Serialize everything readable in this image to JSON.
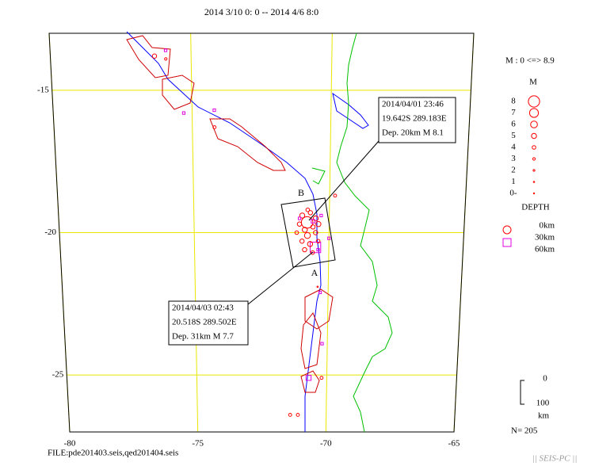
{
  "title": "2014 3/10 0: 0 -- 2014 4/6 8:0",
  "map": {
    "lat_range": [
      -13,
      -27
    ],
    "lon_range": [
      -80,
      -65
    ],
    "lat_ticks": [
      -15,
      -20,
      -25
    ],
    "lon_ticks": [
      -80,
      -75,
      -70,
      -65
    ]
  },
  "callouts": [
    {
      "lines": [
        "2014/04/01 23:46",
        "19.642S   289.183E",
        "Dep. 20km     M 8.1"
      ]
    },
    {
      "lines": [
        "2014/04/03 02:43",
        "20.518S   289.502E",
        "Dep. 31km     M 7.7"
      ]
    }
  ],
  "section_labels": [
    "B",
    "A"
  ],
  "legend": {
    "magnitude_range": "M : 0 <=> 8.9",
    "magnitude_title": "M",
    "magnitudes": [
      8,
      7,
      6,
      5,
      4,
      3,
      2,
      1,
      {
        "value": 0,
        "label": "0-"
      }
    ],
    "depth_title": "DEPTH",
    "depths": [
      {
        "value": 0,
        "label": "0km"
      },
      {
        "value": 30,
        "label": "30km"
      },
      {
        "value": 60,
        "label": "60km"
      }
    ]
  },
  "scale": {
    "top": 0,
    "bottom": 100,
    "unit": "km"
  },
  "count": "N= 205",
  "file": "FILE:pde201403.seis,qed201404.seis",
  "footer": "|| SEIS-PC ||",
  "events": [
    {
      "lon": -75.9,
      "lat": -13.6,
      "depth": 50,
      "mag": 3
    },
    {
      "lon": -76.3,
      "lat": -13.8,
      "depth": 10,
      "mag": 4.5
    },
    {
      "lon": -75.9,
      "lat": -13.9,
      "depth": 10,
      "mag": 3
    },
    {
      "lon": -75.3,
      "lat": -15.8,
      "depth": 50,
      "mag": 3
    },
    {
      "lon": -74.2,
      "lat": -15.7,
      "depth": 50,
      "mag": 3
    },
    {
      "lon": -74.2,
      "lat": -16.3,
      "depth": 10,
      "mag": 3.5
    },
    {
      "lon": -69.8,
      "lat": -18.7,
      "depth": 10,
      "mag": 3.5
    },
    {
      "lon": -70.0,
      "lat": -20.2,
      "depth": 50,
      "mag": 3
    },
    {
      "lon": -70.4,
      "lat": -21.9,
      "depth": 10,
      "mag": 1
    },
    {
      "lon": -70.3,
      "lat": -22.1,
      "depth": 50,
      "mag": 3
    },
    {
      "lon": -70.2,
      "lat": -23.9,
      "depth": 50,
      "mag": 3
    },
    {
      "lon": -70.7,
      "lat": -25.1,
      "depth": 50,
      "mag": 5
    },
    {
      "lon": -70.2,
      "lat": -25.1,
      "depth": 10,
      "mag": 3.5
    },
    {
      "lon": -71.4,
      "lat": -26.4,
      "depth": 10,
      "mag": 3.5
    },
    {
      "lon": -71.1,
      "lat": -26.4,
      "depth": 10,
      "mag": 3.5
    },
    {
      "lon": -70.817,
      "lat": -19.642,
      "depth": 20,
      "mag": 8.1
    },
    {
      "lon": -70.498,
      "lat": -20.518,
      "depth": 31,
      "mag": 7.7
    },
    {
      "lon": -71.0,
      "lat": -19.4,
      "depth": 10,
      "mag": 5
    },
    {
      "lon": -70.7,
      "lat": -19.3,
      "depth": 10,
      "mag": 4.5
    },
    {
      "lon": -70.5,
      "lat": -19.5,
      "depth": 10,
      "mag": 5
    },
    {
      "lon": -71.1,
      "lat": -19.7,
      "depth": 10,
      "mag": 4.5
    },
    {
      "lon": -70.9,
      "lat": -19.9,
      "depth": 10,
      "mag": 5
    },
    {
      "lon": -70.6,
      "lat": -19.8,
      "depth": 10,
      "mag": 4.5
    },
    {
      "lon": -70.4,
      "lat": -19.7,
      "depth": 10,
      "mag": 5
    },
    {
      "lon": -71.2,
      "lat": -20.0,
      "depth": 10,
      "mag": 4
    },
    {
      "lon": -70.8,
      "lat": -20.1,
      "depth": 10,
      "mag": 5.5
    },
    {
      "lon": -70.5,
      "lat": -20.0,
      "depth": 10,
      "mag": 4.5
    },
    {
      "lon": -71.0,
      "lat": -20.3,
      "depth": 10,
      "mag": 4.5
    },
    {
      "lon": -70.7,
      "lat": -20.4,
      "depth": 10,
      "mag": 5
    },
    {
      "lon": -70.4,
      "lat": -20.3,
      "depth": 10,
      "mag": 4
    },
    {
      "lon": -70.9,
      "lat": -20.6,
      "depth": 10,
      "mag": 4.5
    },
    {
      "lon": -70.6,
      "lat": -20.7,
      "depth": 10,
      "mag": 4
    },
    {
      "lon": -70.3,
      "lat": -19.4,
      "depth": 50,
      "mag": 3
    },
    {
      "lon": -71.1,
      "lat": -19.5,
      "depth": 50,
      "mag": 3
    },
    {
      "lon": -70.6,
      "lat": -19.6,
      "depth": 50,
      "mag": 4
    },
    {
      "lon": -70.4,
      "lat": -20.6,
      "depth": 50,
      "mag": 3
    },
    {
      "lon": -70.8,
      "lat": -19.2,
      "depth": 10,
      "mag": 4
    }
  ]
}
